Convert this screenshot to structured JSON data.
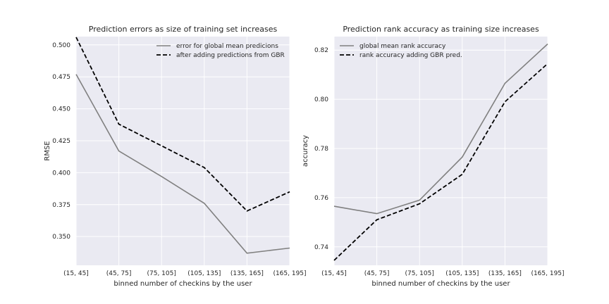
{
  "chart_data": [
    {
      "type": "line",
      "title": "Prediction errors as size of training set increases",
      "xlabel": "binned number of checkins by the user",
      "ylabel": "RMSE",
      "categories": [
        "(15, 45]",
        "(45, 75]",
        "(75, 105]",
        "(105, 135]",
        "(135, 165]",
        "(165, 195]"
      ],
      "yticks": [
        "0.350",
        "0.375",
        "0.400",
        "0.425",
        "0.450",
        "0.475",
        "0.500"
      ],
      "ytick_values": [
        0.35,
        0.375,
        0.4,
        0.425,
        0.45,
        0.475,
        0.5
      ],
      "ylim": [
        0.3275,
        0.5065
      ],
      "grid": true,
      "legend_position": "upper-right",
      "series": [
        {
          "name": "error for global mean predicions",
          "values": [
            0.477,
            0.417,
            0.397,
            0.376,
            0.337,
            0.341
          ],
          "color": "#808080",
          "style": "solid"
        },
        {
          "name": "after adding predictions from GBR",
          "values": [
            0.506,
            0.438,
            0.421,
            0.404,
            0.37,
            0.385
          ],
          "color": "#000000",
          "style": "dashed"
        }
      ]
    },
    {
      "type": "line",
      "title": "Prediction rank accuracy as training size increases",
      "xlabel": "binned number of checkins by the user",
      "ylabel": "accuracy",
      "categories": [
        "(15, 45]",
        "(45, 75]",
        "(75, 105]",
        "(105, 135]",
        "(135, 165]",
        "(165, 195]"
      ],
      "yticks": [
        "0.74",
        "0.76",
        "0.78",
        "0.80",
        "0.82"
      ],
      "ytick_values": [
        0.74,
        0.76,
        0.78,
        0.8,
        0.82
      ],
      "ylim": [
        0.7325,
        0.8255
      ],
      "grid": true,
      "legend_position": "upper-left",
      "series": [
        {
          "name": "global mean rank accuracy",
          "values": [
            0.7565,
            0.7535,
            0.759,
            0.7765,
            0.8065,
            0.8225
          ],
          "color": "#808080",
          "style": "solid"
        },
        {
          "name": "rank accuracy adding GBR pred.",
          "values": [
            0.7345,
            0.751,
            0.7575,
            0.7695,
            0.799,
            0.8145
          ],
          "color": "#000000",
          "style": "dashed"
        }
      ]
    }
  ],
  "colors": {
    "plot_background": "#EAEAF2",
    "grid": "#FFFFFF"
  }
}
